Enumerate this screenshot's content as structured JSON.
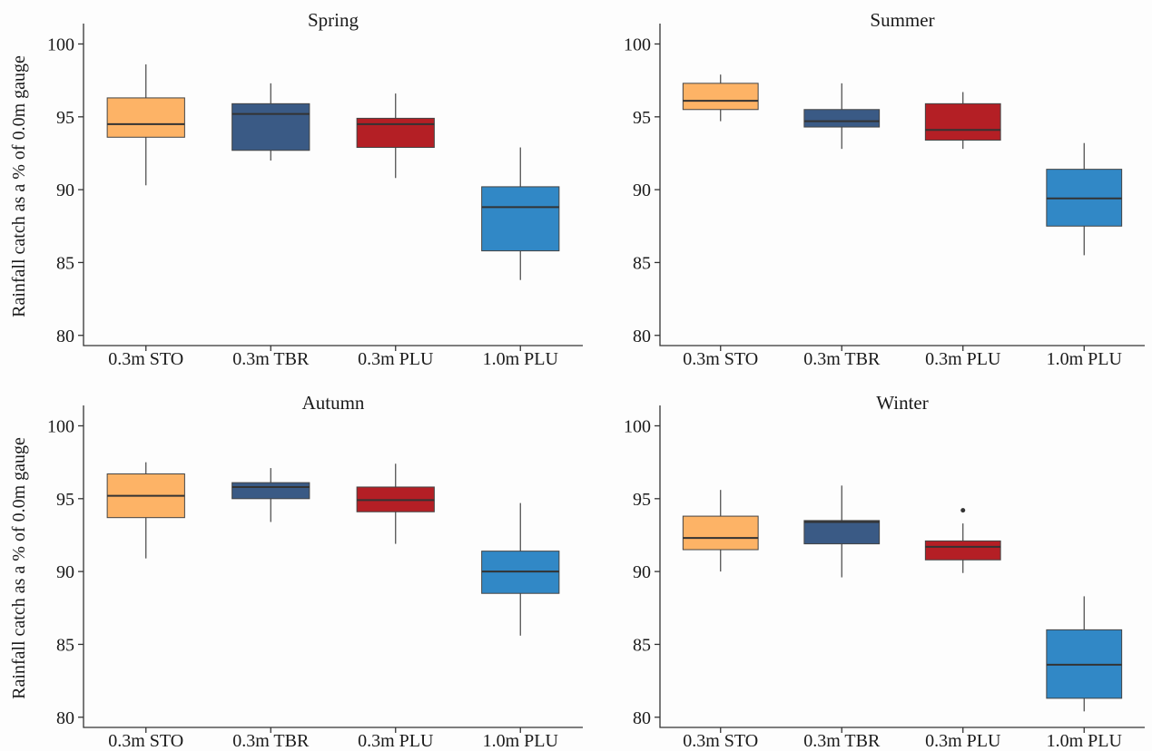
{
  "colors": {
    "0.3m STO": "#fdb366",
    "0.3m TBR": "#3a5a85",
    "0.3m PLU": "#b41f25",
    "1.0m PLU": "#3188c6"
  },
  "chart_data": [
    {
      "type": "box",
      "title": "Spring",
      "ylabel": "Rainfall catch as a % of 0.0m gauge",
      "ylim": [
        79.3,
        101.4
      ],
      "yticks": [
        "80",
        "85",
        "90",
        "95",
        "100"
      ],
      "categories": [
        "0.3m STO",
        "0.3m TBR",
        "0.3m PLU",
        "1.0m PLU"
      ],
      "boxes": [
        {
          "min": 90.3,
          "q1": 93.6,
          "median": 94.5,
          "q3": 96.3,
          "max": 98.6,
          "outliers": []
        },
        {
          "min": 92.0,
          "q1": 92.7,
          "median": 95.2,
          "q3": 95.9,
          "max": 97.3,
          "outliers": []
        },
        {
          "min": 90.8,
          "q1": 92.9,
          "median": 94.5,
          "q3": 94.9,
          "max": 96.6,
          "outliers": []
        },
        {
          "min": 83.8,
          "q1": 85.8,
          "median": 88.8,
          "q3": 90.2,
          "max": 92.9,
          "outliers": []
        }
      ]
    },
    {
      "type": "box",
      "title": "Summer",
      "ylabel": "",
      "ylim": [
        79.3,
        101.4
      ],
      "yticks": [
        "80",
        "85",
        "90",
        "95",
        "100"
      ],
      "categories": [
        "0.3m STO",
        "0.3m TBR",
        "0.3m PLU",
        "1.0m PLU"
      ],
      "boxes": [
        {
          "min": 94.7,
          "q1": 95.5,
          "median": 96.1,
          "q3": 97.3,
          "max": 97.9,
          "outliers": []
        },
        {
          "min": 92.8,
          "q1": 94.3,
          "median": 94.7,
          "q3": 95.5,
          "max": 97.3,
          "outliers": []
        },
        {
          "min": 92.8,
          "q1": 93.4,
          "median": 94.1,
          "q3": 95.9,
          "max": 96.7,
          "outliers": []
        },
        {
          "min": 85.5,
          "q1": 87.5,
          "median": 89.4,
          "q3": 91.4,
          "max": 93.2,
          "outliers": []
        }
      ]
    },
    {
      "type": "box",
      "title": "Autumn",
      "ylabel": "Rainfall catch as a % of 0.0m gauge",
      "ylim": [
        79.3,
        101.4
      ],
      "yticks": [
        "80",
        "85",
        "90",
        "95",
        "100"
      ],
      "categories": [
        "0.3m STO",
        "0.3m TBR",
        "0.3m PLU",
        "1.0m PLU"
      ],
      "boxes": [
        {
          "min": 90.9,
          "q1": 93.7,
          "median": 95.2,
          "q3": 96.7,
          "max": 97.5,
          "outliers": []
        },
        {
          "min": 93.4,
          "q1": 95.0,
          "median": 95.8,
          "q3": 96.1,
          "max": 97.1,
          "outliers": []
        },
        {
          "min": 91.9,
          "q1": 94.1,
          "median": 94.9,
          "q3": 95.8,
          "max": 97.4,
          "outliers": []
        },
        {
          "min": 85.6,
          "q1": 88.5,
          "median": 90.0,
          "q3": 91.4,
          "max": 94.7,
          "outliers": []
        }
      ]
    },
    {
      "type": "box",
      "title": "Winter",
      "ylabel": "",
      "ylim": [
        79.3,
        101.4
      ],
      "yticks": [
        "80",
        "85",
        "90",
        "95",
        "100"
      ],
      "categories": [
        "0.3m STO",
        "0.3m TBR",
        "0.3m PLU",
        "1.0m PLU"
      ],
      "boxes": [
        {
          "min": 90.0,
          "q1": 91.5,
          "median": 92.3,
          "q3": 93.8,
          "max": 95.6,
          "outliers": []
        },
        {
          "min": 89.6,
          "q1": 91.9,
          "median": 93.4,
          "q3": 93.5,
          "max": 95.9,
          "outliers": []
        },
        {
          "min": 89.9,
          "q1": 90.8,
          "median": 91.7,
          "q3": 92.1,
          "max": 93.3,
          "outliers": [
            94.2
          ]
        },
        {
          "min": 80.4,
          "q1": 81.3,
          "median": 83.6,
          "q3": 86.0,
          "max": 88.3,
          "outliers": []
        }
      ]
    }
  ]
}
